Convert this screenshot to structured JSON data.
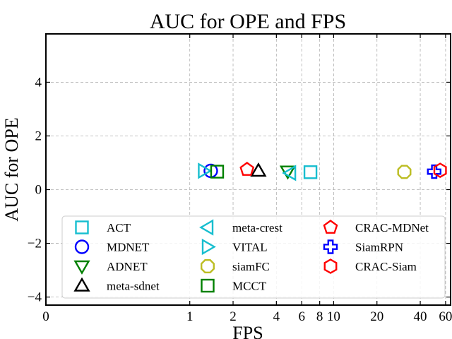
{
  "chart_data": {
    "type": "scatter",
    "title": "AUC for OPE and FPS",
    "xlabel": "FPS",
    "ylabel": "AUC for OPE",
    "xscale": "symlog",
    "xlim": [
      0,
      65
    ],
    "ylim": [
      -4.3,
      5.8
    ],
    "xticks": [
      {
        "value": 0,
        "label": "0"
      },
      {
        "value": 1,
        "label": "1"
      },
      {
        "value": 2,
        "label": "2"
      },
      {
        "value": 4,
        "label": "4"
      },
      {
        "value": 6,
        "label": "6"
      },
      {
        "value": 8,
        "label": "8"
      },
      {
        "value": 10,
        "label": "10"
      },
      {
        "value": 20,
        "label": "20"
      },
      {
        "value": 40,
        "label": "40"
      },
      {
        "value": 60,
        "label": "60"
      }
    ],
    "yticks": [
      {
        "value": -4,
        "label": "−4"
      },
      {
        "value": -2,
        "label": "−2"
      },
      {
        "value": 0,
        "label": "0"
      },
      {
        "value": 2,
        "label": "2"
      },
      {
        "value": 4,
        "label": "4"
      }
    ],
    "grid": true,
    "legend": {
      "placement": "lower-center",
      "columns": 3
    },
    "series": [
      {
        "name": "ACT",
        "x": 6.9,
        "y": 0.65,
        "marker": "square",
        "color": "#17BECF"
      },
      {
        "name": "MDNET",
        "x": 1.4,
        "y": 0.7,
        "marker": "circle",
        "color": "#0000FF"
      },
      {
        "name": "ADNET",
        "x": 4.8,
        "y": 0.68,
        "marker": "triangle-down",
        "color": "#008000"
      },
      {
        "name": "meta-sdnet",
        "x": 3.0,
        "y": 0.7,
        "marker": "triangle-up",
        "color": "#000000"
      },
      {
        "name": "meta-crest",
        "x": 5.0,
        "y": 0.62,
        "marker": "triangle-left",
        "color": "#17BECF"
      },
      {
        "name": "VITAL",
        "x": 1.25,
        "y": 0.7,
        "marker": "triangle-right",
        "color": "#17BECF"
      },
      {
        "name": "siamFC",
        "x": 31.0,
        "y": 0.66,
        "marker": "octagon",
        "color": "#BCBD22"
      },
      {
        "name": "MCCT",
        "x": 1.55,
        "y": 0.67,
        "marker": "square",
        "color": "#008000"
      },
      {
        "name": "CRAC-MDNet",
        "x": 2.5,
        "y": 0.75,
        "marker": "pentagon",
        "color": "#FF0000"
      },
      {
        "name": "SiamRPN",
        "x": 50.0,
        "y": 0.67,
        "marker": "plus",
        "color": "#0000FF"
      },
      {
        "name": "CRAC-Siam",
        "x": 55.0,
        "y": 0.72,
        "marker": "hexagon",
        "color": "#FF0000"
      }
    ]
  }
}
